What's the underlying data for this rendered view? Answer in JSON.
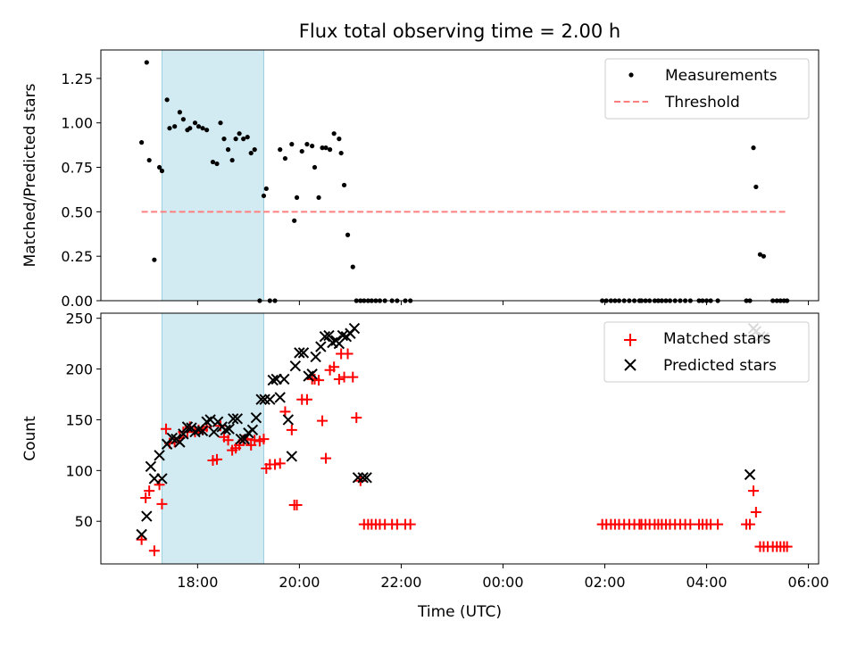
{
  "figure": {
    "title": "Flux total observing time = 2.00 h",
    "xlabel": "Time (UTC)",
    "highlight_color": "#add8e6",
    "highlight_span_hours": [
      17.3,
      19.3
    ],
    "xlim_hours": [
      16.1,
      30.2
    ],
    "xticks": [
      {
        "hours": 18,
        "label": "18:00"
      },
      {
        "hours": 20,
        "label": "20:00"
      },
      {
        "hours": 22,
        "label": "22:00"
      },
      {
        "hours": 24,
        "label": "00:00"
      },
      {
        "hours": 26,
        "label": "02:00"
      },
      {
        "hours": 28,
        "label": "04:00"
      },
      {
        "hours": 30,
        "label": "06:00"
      }
    ]
  },
  "chart_data": [
    {
      "type": "scatter",
      "ylabel": "Matched/Predicted stars",
      "ylim": [
        0,
        1.41
      ],
      "yticks": [
        "0.00",
        "0.25",
        "0.50",
        "0.75",
        "1.00",
        "1.25"
      ],
      "legend": {
        "position": "upper right",
        "entries": [
          "Measurements",
          "Threshold"
        ]
      },
      "series": [
        {
          "name": "Measurements",
          "color": "#000000",
          "marker": "dot",
          "x_hours": [
            16.9,
            17.0,
            17.05,
            17.15,
            17.25,
            17.3,
            17.4,
            17.45,
            17.55,
            17.65,
            17.72,
            17.8,
            17.85,
            17.95,
            18.02,
            18.1,
            18.18,
            18.3,
            18.38,
            18.45,
            18.52,
            18.6,
            18.68,
            18.75,
            18.82,
            18.9,
            18.98,
            19.05,
            19.12,
            19.22,
            19.3,
            19.35,
            19.42,
            19.52,
            19.62,
            19.72,
            19.85,
            19.9,
            19.95,
            20.05,
            20.15,
            20.25,
            20.3,
            20.38,
            20.45,
            20.52,
            20.6,
            20.68,
            20.78,
            20.82,
            20.88,
            20.95,
            21.05,
            21.12,
            21.2,
            21.27,
            21.35,
            21.42,
            21.5,
            21.58,
            21.68,
            21.82,
            21.92,
            22.08,
            22.18,
            25.95,
            26.03,
            26.12,
            26.2,
            26.28,
            26.38,
            26.48,
            26.58,
            26.68,
            26.72,
            26.8,
            26.88,
            26.98,
            27.05,
            27.12,
            27.2,
            27.28,
            27.38,
            27.48,
            27.58,
            27.68,
            27.85,
            27.92,
            28.0,
            28.08,
            28.22,
            28.78,
            28.85,
            28.92,
            28.97,
            29.05,
            29.12,
            29.3,
            29.38,
            29.45,
            29.52,
            29.58
          ],
          "y": [
            0.89,
            1.34,
            0.79,
            0.23,
            0.75,
            0.73,
            1.13,
            0.97,
            0.98,
            1.06,
            1.02,
            0.96,
            0.97,
            1.0,
            0.98,
            0.97,
            0.96,
            0.78,
            0.77,
            1.0,
            0.91,
            0.85,
            0.79,
            0.91,
            0.94,
            0.91,
            0.92,
            0.83,
            0.85,
            0.0,
            0.59,
            0.63,
            0.0,
            0.0,
            0.85,
            0.8,
            0.88,
            0.45,
            0.58,
            0.84,
            0.88,
            0.87,
            0.75,
            0.58,
            0.86,
            0.86,
            0.85,
            0.94,
            0.91,
            0.83,
            0.65,
            0.37,
            0.19,
            0.0,
            0.0,
            0.0,
            0.0,
            0.0,
            0.0,
            0.0,
            0.0,
            0.0,
            0.0,
            0.0,
            0.0,
            0.0,
            0.0,
            0.0,
            0.0,
            0.0,
            0.0,
            0.0,
            0.0,
            0.0,
            0.0,
            0.0,
            0.0,
            0.0,
            0.0,
            0.0,
            0.0,
            0.0,
            0.0,
            0.0,
            0.0,
            0.0,
            0.0,
            0.0,
            0.0,
            0.0,
            0.0,
            0.0,
            0.0,
            0.86,
            0.64,
            0.26,
            0.25,
            0.0,
            0.0,
            0.0,
            0.0,
            0.0
          ]
        },
        {
          "name": "Threshold",
          "color": "#ff7f7f",
          "style": "dashed",
          "x_hours": [
            16.9,
            29.55
          ],
          "y": [
            0.5,
            0.5
          ]
        }
      ]
    },
    {
      "type": "scatter",
      "ylabel": "Count",
      "ylim": [
        8,
        255
      ],
      "yticks": [
        "50",
        "100",
        "150",
        "200",
        "250"
      ],
      "legend": {
        "position": "upper right",
        "entries": [
          "Matched stars",
          "Predicted stars"
        ]
      },
      "series": [
        {
          "name": "Matched stars",
          "color": "#ff0000",
          "marker": "plus",
          "x_hours": [
            16.9,
            16.98,
            17.05,
            17.15,
            17.25,
            17.3,
            17.38,
            17.45,
            17.55,
            17.65,
            17.72,
            17.8,
            17.85,
            17.95,
            18.02,
            18.1,
            18.18,
            18.3,
            18.38,
            18.45,
            18.52,
            18.6,
            18.68,
            18.75,
            18.82,
            18.9,
            18.98,
            19.05,
            19.12,
            19.22,
            19.3,
            19.35,
            19.42,
            19.52,
            19.62,
            19.72,
            19.85,
            19.9,
            19.95,
            20.05,
            20.15,
            20.25,
            20.3,
            20.38,
            20.45,
            20.52,
            20.6,
            20.68,
            20.78,
            20.82,
            20.88,
            20.95,
            21.05,
            21.12,
            21.2,
            21.27,
            21.35,
            21.42,
            21.5,
            21.58,
            21.68,
            21.82,
            21.92,
            22.08,
            22.18,
            25.95,
            26.03,
            26.12,
            26.2,
            26.28,
            26.38,
            26.48,
            26.58,
            26.68,
            26.72,
            26.8,
            26.88,
            26.98,
            27.05,
            27.12,
            27.2,
            27.28,
            27.38,
            27.48,
            27.58,
            27.68,
            27.85,
            27.92,
            28.0,
            28.08,
            28.22,
            28.78,
            28.85,
            28.92,
            28.97,
            29.05,
            29.12,
            29.2,
            29.3,
            29.38,
            29.45,
            29.52,
            29.58
          ],
          "y": [
            32,
            73,
            80,
            21,
            86,
            67,
            141,
            127,
            128,
            132,
            138,
            138,
            143,
            138,
            140,
            140,
            143,
            110,
            111,
            144,
            133,
            130,
            120,
            122,
            125,
            130,
            131,
            125,
            130,
            129,
            131,
            102,
            106,
            106,
            107,
            158,
            140,
            66,
            66,
            170,
            170,
            190,
            190,
            189,
            149,
            112,
            199,
            202,
            190,
            215,
            192,
            215,
            192,
            152,
            90,
            47,
            47,
            47,
            47,
            47,
            47,
            47,
            47,
            47,
            47,
            47,
            47,
            47,
            47,
            47,
            47,
            47,
            47,
            47,
            47,
            47,
            47,
            47,
            47,
            47,
            47,
            47,
            47,
            47,
            47,
            47,
            47,
            47,
            47,
            47,
            47,
            47,
            47,
            80,
            59,
            25,
            25,
            25,
            25,
            25,
            25,
            25,
            25
          ]
        },
        {
          "name": "Predicted stars",
          "color": "#000000",
          "marker": "x",
          "x_hours": [
            16.9,
            17.0,
            17.08,
            17.15,
            17.25,
            17.3,
            17.4,
            17.5,
            17.58,
            17.65,
            17.72,
            17.8,
            17.88,
            17.95,
            18.02,
            18.1,
            18.18,
            18.25,
            18.32,
            18.4,
            18.48,
            18.55,
            18.62,
            18.7,
            18.78,
            18.85,
            18.92,
            19.0,
            19.08,
            19.15,
            19.25,
            19.32,
            19.42,
            19.48,
            19.55,
            19.62,
            19.7,
            19.78,
            19.85,
            19.92,
            20.0,
            20.08,
            20.18,
            20.25,
            20.32,
            20.42,
            20.5,
            20.58,
            20.65,
            20.72,
            20.78,
            20.85,
            20.92,
            21.0,
            21.08,
            21.15,
            21.25,
            21.32,
            28.85,
            28.92,
            28.97,
            29.05,
            29.12
          ],
          "y": [
            37,
            55,
            104,
            92,
            115,
            92,
            126,
            132,
            131,
            128,
            136,
            143,
            142,
            138,
            140,
            139,
            148,
            150,
            138,
            148,
            143,
            140,
            141,
            151,
            151,
            131,
            131,
            137,
            140,
            152,
            170,
            170,
            170,
            189,
            190,
            172,
            190,
            150,
            114,
            203,
            216,
            216,
            193,
            195,
            212,
            222,
            232,
            233,
            226,
            228,
            225,
            233,
            232,
            235,
            240,
            93,
            93,
            93,
            96,
            240,
            237,
            232,
            231
          ]
        }
      ]
    }
  ]
}
